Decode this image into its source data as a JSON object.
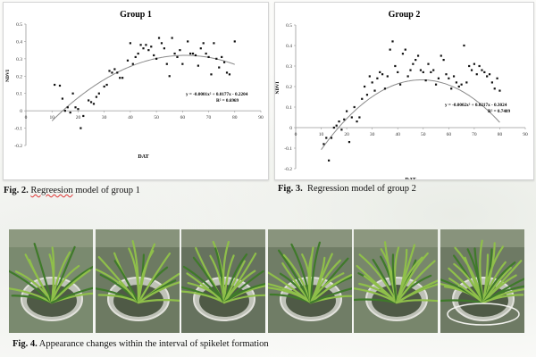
{
  "chart_data": [
    {
      "type": "scatter",
      "title": "Group 1",
      "xlabel": "DAT",
      "ylabel": "NDVI",
      "xlim": [
        0,
        90
      ],
      "ylim": [
        -0.2,
        0.5
      ],
      "xticks": [
        "0",
        "10",
        "20",
        "30",
        "40",
        "50",
        "60",
        "70",
        "80",
        "90"
      ],
      "yticks": [
        "-0.2",
        "-0.1",
        "0",
        "0.1",
        "0.2",
        "0.3",
        "0.4",
        "0.5"
      ],
      "grid": false,
      "equation": "y = -0.0001x² + 0.0177x - 0.2204",
      "r2": "R² = 0.6969",
      "trend": {
        "a": -0.000145,
        "b": 0.0177,
        "c": -0.2204,
        "x_range": [
          10,
          80
        ]
      },
      "points": [
        [
          11,
          0.15
        ],
        [
          13,
          0.145
        ],
        [
          14,
          0.07
        ],
        [
          15,
          0.0
        ],
        [
          16,
          0.02
        ],
        [
          17,
          -0.01
        ],
        [
          18,
          0.1
        ],
        [
          19,
          0.02
        ],
        [
          20,
          0.01
        ],
        [
          21,
          -0.1
        ],
        [
          22,
          -0.03
        ],
        [
          24,
          0.06
        ],
        [
          25,
          0.05
        ],
        [
          26,
          0.04
        ],
        [
          27,
          0.08
        ],
        [
          28,
          0.1
        ],
        [
          30,
          0.14
        ],
        [
          31,
          0.15
        ],
        [
          32,
          0.23
        ],
        [
          33,
          0.22
        ],
        [
          34,
          0.24
        ],
        [
          35,
          0.22
        ],
        [
          36,
          0.19
        ],
        [
          37,
          0.19
        ],
        [
          39,
          0.29
        ],
        [
          40,
          0.39
        ],
        [
          41,
          0.27
        ],
        [
          42,
          0.31
        ],
        [
          43,
          0.33
        ],
        [
          44,
          0.38
        ],
        [
          45,
          0.36
        ],
        [
          46,
          0.38
        ],
        [
          47,
          0.35
        ],
        [
          48,
          0.37
        ],
        [
          49,
          0.32
        ],
        [
          50,
          0.3
        ],
        [
          51,
          0.42
        ],
        [
          52,
          0.39
        ],
        [
          53,
          0.36
        ],
        [
          54,
          0.27
        ],
        [
          55,
          0.2
        ],
        [
          56,
          0.42
        ],
        [
          57,
          0.33
        ],
        [
          58,
          0.31
        ],
        [
          59,
          0.35
        ],
        [
          60,
          0.27
        ],
        [
          62,
          0.4
        ],
        [
          63,
          0.33
        ],
        [
          64,
          0.33
        ],
        [
          65,
          0.32
        ],
        [
          66,
          0.26
        ],
        [
          67,
          0.36
        ],
        [
          68,
          0.39
        ],
        [
          69,
          0.33
        ],
        [
          70,
          0.31
        ],
        [
          71,
          0.21
        ],
        [
          72,
          0.39
        ],
        [
          73,
          0.3
        ],
        [
          74,
          0.25
        ],
        [
          75,
          0.31
        ],
        [
          76,
          0.28
        ],
        [
          77,
          0.22
        ],
        [
          78,
          0.21
        ],
        [
          80,
          0.4
        ]
      ]
    },
    {
      "type": "scatter",
      "title": "Group 2",
      "xlabel": "DAT",
      "ylabel": "NDVI",
      "xlim": [
        0,
        90
      ],
      "ylim": [
        -0.2,
        0.5
      ],
      "xticks": [
        "0",
        "10",
        "20",
        "30",
        "40",
        "50",
        "60",
        "70",
        "80",
        "90"
      ],
      "yticks": [
        "-0.2",
        "-0.1",
        "0",
        "0.1",
        "0.2",
        "0.3",
        "0.4",
        "0.5"
      ],
      "grid": false,
      "equation": "y = -0.0002x² + 0.0217x - 0.3024",
      "r2": "R² = 0.7409",
      "trend": {
        "a": -0.00022,
        "b": 0.0217,
        "c": -0.3024,
        "x_range": [
          10,
          80
        ]
      },
      "points": [
        [
          11,
          -0.08
        ],
        [
          12,
          -0.05
        ],
        [
          13,
          -0.16
        ],
        [
          14,
          -0.05
        ],
        [
          15,
          0.0
        ],
        [
          16,
          0.01
        ],
        [
          17,
          0.03
        ],
        [
          18,
          -0.01
        ],
        [
          19,
          0.04
        ],
        [
          20,
          0.08
        ],
        [
          21,
          -0.07
        ],
        [
          22,
          0.05
        ],
        [
          23,
          0.1
        ],
        [
          24,
          0.03
        ],
        [
          25,
          0.05
        ],
        [
          26,
          0.14
        ],
        [
          27,
          0.2
        ],
        [
          28,
          0.16
        ],
        [
          29,
          0.25
        ],
        [
          30,
          0.22
        ],
        [
          31,
          0.18
        ],
        [
          32,
          0.24
        ],
        [
          33,
          0.27
        ],
        [
          34,
          0.26
        ],
        [
          35,
          0.19
        ],
        [
          36,
          0.25
        ],
        [
          37,
          0.38
        ],
        [
          38,
          0.42
        ],
        [
          39,
          0.3
        ],
        [
          40,
          0.27
        ],
        [
          41,
          0.21
        ],
        [
          42,
          0.36
        ],
        [
          43,
          0.38
        ],
        [
          44,
          0.25
        ],
        [
          45,
          0.28
        ],
        [
          46,
          0.31
        ],
        [
          47,
          0.33
        ],
        [
          48,
          0.35
        ],
        [
          49,
          0.28
        ],
        [
          50,
          0.27
        ],
        [
          51,
          0.23
        ],
        [
          52,
          0.31
        ],
        [
          53,
          0.27
        ],
        [
          54,
          0.28
        ],
        [
          55,
          0.21
        ],
        [
          56,
          0.24
        ],
        [
          57,
          0.35
        ],
        [
          58,
          0.33
        ],
        [
          59,
          0.26
        ],
        [
          60,
          0.24
        ],
        [
          61,
          0.19
        ],
        [
          62,
          0.25
        ],
        [
          63,
          0.22
        ],
        [
          64,
          0.2
        ],
        [
          65,
          0.21
        ],
        [
          66,
          0.4
        ],
        [
          67,
          0.22
        ],
        [
          68,
          0.3
        ],
        [
          69,
          0.28
        ],
        [
          70,
          0.31
        ],
        [
          71,
          0.26
        ],
        [
          72,
          0.3
        ],
        [
          73,
          0.28
        ],
        [
          74,
          0.27
        ],
        [
          75,
          0.25
        ],
        [
          76,
          0.26
        ],
        [
          77,
          0.22
        ],
        [
          78,
          0.19
        ],
        [
          79,
          0.24
        ],
        [
          80,
          0.18
        ]
      ]
    }
  ],
  "captions": {
    "fig2": {
      "label": "Fig. 2.",
      "pre": " ",
      "underlined": "Regreesion",
      "post": " model of group 1"
    },
    "fig3": {
      "label": "Fig. 3.",
      "text": "  Regression model of group 2"
    },
    "fig4": {
      "label": "Fig. 4.",
      "text": " Appearance changes within the interval of spikelet formation"
    }
  },
  "colors": {
    "marker": "#111111",
    "trend": "#8a8a8a",
    "leaf_light": "#8fbf4a",
    "leaf_dark": "#3f7a2a",
    "soil": "#4f5a46"
  }
}
